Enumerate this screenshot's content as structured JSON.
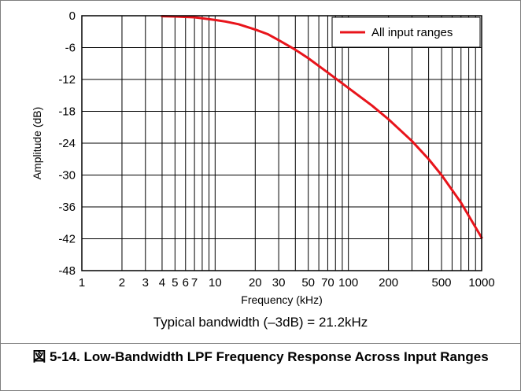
{
  "chart_data": {
    "type": "line",
    "xscale": "log",
    "xlim": [
      1,
      1000
    ],
    "ylim": [
      -48,
      0
    ],
    "xlabel": "Frequency (kHz)",
    "ylabel": "Amplitude (dB)",
    "grid": true,
    "legend_position": "top-right",
    "yticks": [
      0,
      -6,
      -12,
      -18,
      -24,
      -30,
      -36,
      -42,
      -48
    ],
    "xtick_labels": [
      {
        "v": 1,
        "t": "1"
      },
      {
        "v": 2,
        "t": "2"
      },
      {
        "v": 3,
        "t": "3"
      },
      {
        "v": 4,
        "t": "4"
      },
      {
        "v": 5,
        "t": "5"
      },
      {
        "v": 6,
        "t": "6"
      },
      {
        "v": 7,
        "t": "7"
      },
      {
        "v": 10,
        "t": "10"
      },
      {
        "v": 20,
        "t": "20"
      },
      {
        "v": 30,
        "t": "30"
      },
      {
        "v": 50,
        "t": "50"
      },
      {
        "v": 70,
        "t": "70"
      },
      {
        "v": 100,
        "t": "100"
      },
      {
        "v": 200,
        "t": "200"
      },
      {
        "v": 500,
        "t": "500"
      },
      {
        "v": 1000,
        "t": "1000"
      }
    ],
    "series": [
      {
        "name": "All input ranges",
        "color": "#e8141b",
        "x": [
          4,
          5,
          7,
          10,
          12,
          15,
          20,
          25,
          30,
          40,
          50,
          70,
          100,
          150,
          200,
          300,
          400,
          500,
          700,
          1000
        ],
        "y": [
          -0.1,
          -0.15,
          -0.3,
          -0.8,
          -1.1,
          -1.6,
          -2.6,
          -3.5,
          -4.6,
          -6.4,
          -8.0,
          -10.7,
          -13.6,
          -16.9,
          -19.5,
          -23.6,
          -27.0,
          -30.0,
          -35.2,
          -41.8
        ]
      }
    ]
  },
  "note": "Typical bandwidth (–3dB) = 21.2kHz",
  "caption": {
    "prefix": "図 5-14.",
    "text": "Low-Bandwidth LPF Frequency Response Across Input Ranges"
  }
}
